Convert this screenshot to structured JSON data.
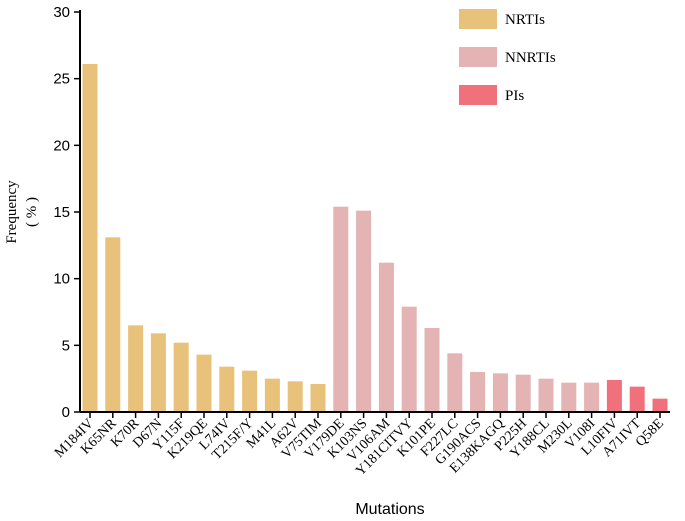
{
  "chart_data": {
    "type": "bar",
    "xlabel": "Mutations",
    "ylabel": [
      "Frequency",
      "( % )"
    ],
    "ylim": [
      0,
      30
    ],
    "yticks": [
      0,
      5,
      10,
      15,
      20,
      25,
      30
    ],
    "legend_position": "top-right",
    "categories": [
      "M184IV",
      "K65NR",
      "K70R",
      "D67N",
      "Y115F",
      "K219QE",
      "L74IV",
      "T215F/Y",
      "M41L",
      "A62V",
      "V75TIM",
      "V179DE",
      "K103NS",
      "V106AM",
      "Y181CITVY",
      "K101PE",
      "F227LC",
      "G190ACS",
      "E138KAGQ",
      "P225H",
      "Y188CL",
      "M230L",
      "V108I",
      "L10FIV",
      "A71IVT",
      "Q58E"
    ],
    "series": [
      {
        "name": "NRTIs",
        "color": "#E8C27A",
        "values": [
          26.1,
          13.1,
          6.5,
          5.9,
          5.2,
          4.3,
          3.4,
          3.1,
          2.5,
          2.3,
          2.1,
          null,
          null,
          null,
          null,
          null,
          null,
          null,
          null,
          null,
          null,
          null,
          null,
          null,
          null,
          null
        ]
      },
      {
        "name": "NNRTIs",
        "color": "#E4B3B3",
        "values": [
          null,
          null,
          null,
          null,
          null,
          null,
          null,
          null,
          null,
          null,
          null,
          15.4,
          15.1,
          11.2,
          7.9,
          6.3,
          4.4,
          3.0,
          2.9,
          2.8,
          2.5,
          2.2,
          2.2,
          null,
          null,
          null
        ]
      },
      {
        "name": "PIs",
        "color": "#F0717B",
        "values": [
          null,
          null,
          null,
          null,
          null,
          null,
          null,
          null,
          null,
          null,
          null,
          null,
          null,
          null,
          null,
          null,
          null,
          null,
          null,
          null,
          null,
          null,
          null,
          2.4,
          1.9,
          1.0
        ]
      }
    ]
  }
}
